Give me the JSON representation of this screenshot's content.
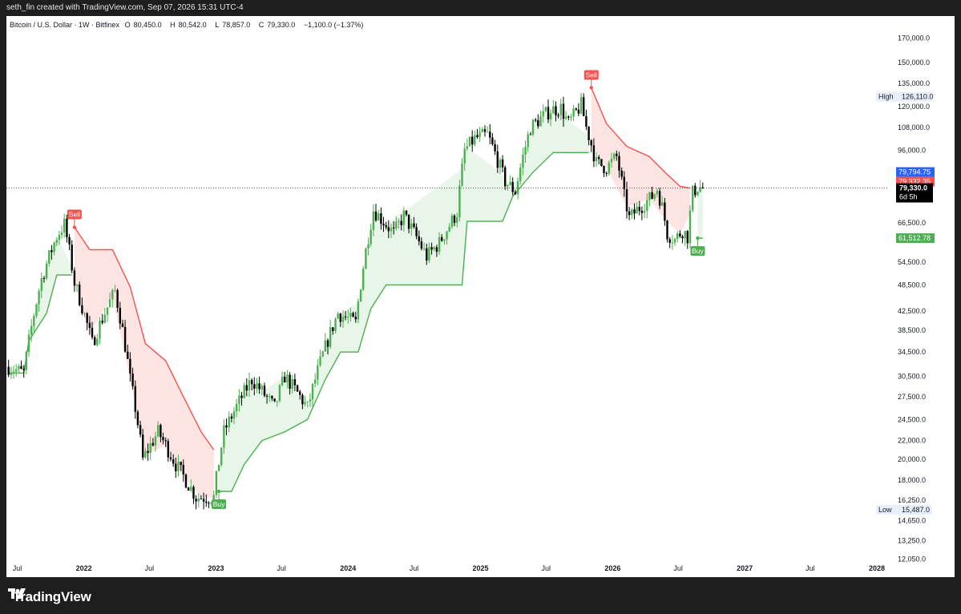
{
  "header": {
    "caption": "seth_fin created with TradingView.com, Sep 07, 2026 15:31 UTC-4"
  },
  "legend": {
    "symbol": "Bitcoin / U.S. Dollar · 1W · Bitfinex",
    "open_label": "O",
    "open": "80,450.0",
    "high_label": "H",
    "high": "80,542.0",
    "low_label": "L",
    "low": "78,857.0",
    "close_label": "C",
    "close": "79,330.0",
    "change": "−1,100.0 (−1.37%)"
  },
  "footer": {
    "brand": "TradingView"
  },
  "colors": {
    "up": "#4caf50",
    "down": "#000000",
    "bull_line": "#4caf50",
    "bear_line": "#f05350",
    "bull_fill": "#e8f6e9",
    "bear_fill": "#fde4e3",
    "last_price": "#000000",
    "upper_tag": "#2962ff",
    "lower_tag": "#f05350",
    "stop_tag": "#4caf50",
    "axis_text": "#131722"
  },
  "chart_data": {
    "type": "candlestick",
    "y_scale": "log",
    "ylim": [
      11000,
      190000
    ],
    "xlim": [
      "2021-06-01",
      "2028-02-01"
    ],
    "y_ticks": [
      {
        "value": 170000,
        "label": "170,000.0"
      },
      {
        "value": 150000,
        "label": "150,000.0"
      },
      {
        "value": 135000,
        "label": "135,000.0"
      },
      {
        "value": 120000,
        "label": "120,000.0"
      },
      {
        "value": 108000,
        "label": "108,000.0"
      },
      {
        "value": 96000,
        "label": "96,000.0"
      },
      {
        "value": 66500,
        "label": "66,500.0"
      },
      {
        "value": 54500,
        "label": "54,500.0"
      },
      {
        "value": 48500,
        "label": "48,500.0"
      },
      {
        "value": 42500,
        "label": "42,500.0"
      },
      {
        "value": 38500,
        "label": "38,500.0"
      },
      {
        "value": 34500,
        "label": "34,500.0"
      },
      {
        "value": 30500,
        "label": "30,500.0"
      },
      {
        "value": 27500,
        "label": "27,500.0"
      },
      {
        "value": 24500,
        "label": "24,500.0"
      },
      {
        "value": 22000,
        "label": "22,000.0"
      },
      {
        "value": 20000,
        "label": "20,000.0"
      },
      {
        "value": 18000,
        "label": "18,000.0"
      },
      {
        "value": 16250,
        "label": "16,250.0"
      },
      {
        "value": 14650,
        "label": "14,650.0"
      },
      {
        "value": 13250,
        "label": "13,250.0"
      },
      {
        "value": 12050,
        "label": "12,050.0"
      }
    ],
    "x_ticks": [
      {
        "date": "2021-07-01",
        "label": "Jul"
      },
      {
        "date": "2022-01-01",
        "label": "2022"
      },
      {
        "date": "2022-07-01",
        "label": "Jul"
      },
      {
        "date": "2023-01-01",
        "label": "2023"
      },
      {
        "date": "2023-07-01",
        "label": "Jul"
      },
      {
        "date": "2024-01-01",
        "label": "2024"
      },
      {
        "date": "2024-07-01",
        "label": "Jul"
      },
      {
        "date": "2025-01-01",
        "label": "2025"
      },
      {
        "date": "2025-07-01",
        "label": "Jul"
      },
      {
        "date": "2026-01-01",
        "label": "2026"
      },
      {
        "date": "2026-07-01",
        "label": "Jul"
      },
      {
        "date": "2027-01-01",
        "label": "2027"
      },
      {
        "date": "2027-07-01",
        "label": "Jul"
      },
      {
        "date": "2028-01-01",
        "label": "2028"
      }
    ],
    "price_anchors": [
      [
        "2021-06-07",
        32000
      ],
      [
        "2021-07-19",
        31000
      ],
      [
        "2021-09-06",
        50000
      ],
      [
        "2021-10-18",
        62000
      ],
      [
        "2021-11-08",
        66000
      ],
      [
        "2021-12-06",
        49000
      ],
      [
        "2022-01-24",
        36000
      ],
      [
        "2022-03-28",
        47000
      ],
      [
        "2022-05-09",
        30000
      ],
      [
        "2022-06-13",
        20000
      ],
      [
        "2022-07-25",
        23000
      ],
      [
        "2022-09-12",
        19500
      ],
      [
        "2022-11-07",
        16500
      ],
      [
        "2022-12-26",
        16500
      ],
      [
        "2023-01-23",
        23000
      ],
      [
        "2023-04-10",
        30000
      ],
      [
        "2023-06-12",
        26000
      ],
      [
        "2023-07-10",
        30500
      ],
      [
        "2023-09-11",
        26000
      ],
      [
        "2023-10-23",
        34000
      ],
      [
        "2023-12-04",
        42000
      ],
      [
        "2024-01-22",
        40000
      ],
      [
        "2024-03-11",
        71000
      ],
      [
        "2024-05-06",
        63000
      ],
      [
        "2024-06-03",
        69000
      ],
      [
        "2024-08-05",
        56000
      ],
      [
        "2024-09-09",
        60000
      ],
      [
        "2024-10-28",
        70000
      ],
      [
        "2024-11-18",
        96000
      ],
      [
        "2024-12-16",
        102000
      ],
      [
        "2025-01-20",
        104000
      ],
      [
        "2025-03-10",
        82000
      ],
      [
        "2025-04-07",
        78000
      ],
      [
        "2025-05-19",
        108000
      ],
      [
        "2025-07-14",
        118000
      ],
      [
        "2025-08-11",
        119000
      ],
      [
        "2025-09-01",
        110000
      ],
      [
        "2025-10-06",
        121000
      ],
      [
        "2025-10-20",
        108000
      ],
      [
        "2025-11-17",
        90000
      ],
      [
        "2025-12-15",
        88000
      ],
      [
        "2026-01-12",
        93000
      ],
      [
        "2026-02-02",
        76000
      ],
      [
        "2026-02-16",
        68000
      ],
      [
        "2026-03-09",
        71000
      ],
      [
        "2026-04-20",
        76000
      ],
      [
        "2026-05-04",
        79000
      ],
      [
        "2026-05-18",
        72000
      ],
      [
        "2026-06-01",
        63000
      ],
      [
        "2026-06-22",
        61000
      ],
      [
        "2026-07-13",
        64000
      ],
      [
        "2026-07-27",
        62000
      ],
      [
        "2026-08-10",
        77500
      ],
      [
        "2026-08-24",
        79800
      ],
      [
        "2026-09-07",
        79330
      ]
    ],
    "supertrend_anchors": [
      [
        "2021-06-07",
        31000,
        "bull"
      ],
      [
        "2021-07-19",
        31000,
        "bull"
      ],
      [
        "2021-08-02",
        36500,
        "bull"
      ],
      [
        "2021-09-20",
        42000,
        "bull"
      ],
      [
        "2021-10-18",
        51000,
        "bull"
      ],
      [
        "2021-11-29",
        51000,
        "bull"
      ],
      [
        "2021-12-06",
        65000,
        "bear"
      ],
      [
        "2022-01-17",
        58000,
        "bear"
      ],
      [
        "2022-03-21",
        58000,
        "bear"
      ],
      [
        "2022-05-09",
        48000,
        "bear"
      ],
      [
        "2022-06-20",
        36000,
        "bear"
      ],
      [
        "2022-08-15",
        33000,
        "bear"
      ],
      [
        "2022-10-03",
        27500,
        "bear"
      ],
      [
        "2022-11-21",
        23000,
        "bear"
      ],
      [
        "2022-12-26",
        21000,
        "bear"
      ],
      [
        "2023-01-09",
        17000,
        "bull"
      ],
      [
        "2023-02-13",
        17000,
        "bull"
      ],
      [
        "2023-03-20",
        19500,
        "bull"
      ],
      [
        "2023-05-08",
        22000,
        "bull"
      ],
      [
        "2023-07-10",
        23000,
        "bull"
      ],
      [
        "2023-09-11",
        24500,
        "bull"
      ],
      [
        "2023-10-30",
        30000,
        "bull"
      ],
      [
        "2023-12-11",
        34500,
        "bull"
      ],
      [
        "2024-01-29",
        34500,
        "bull"
      ],
      [
        "2024-03-04",
        43000,
        "bull"
      ],
      [
        "2024-04-15",
        48500,
        "bull"
      ],
      [
        "2024-11-11",
        48500,
        "bull"
      ],
      [
        "2024-11-25",
        67000,
        "bull"
      ],
      [
        "2025-03-03",
        67000,
        "bull"
      ],
      [
        "2025-03-31",
        76000,
        "bull"
      ],
      [
        "2025-05-26",
        86000,
        "bull"
      ],
      [
        "2025-07-21",
        95000,
        "bull"
      ],
      [
        "2025-10-27",
        95000,
        "bull"
      ],
      [
        "2025-11-03",
        132000,
        "bear"
      ],
      [
        "2025-12-15",
        110000,
        "bear"
      ],
      [
        "2026-02-09",
        98000,
        "bear"
      ],
      [
        "2026-04-13",
        93000,
        "bear"
      ],
      [
        "2026-05-25",
        86000,
        "bear"
      ],
      [
        "2026-07-06",
        80000,
        "bear"
      ],
      [
        "2026-08-03",
        79332.35,
        "bear"
      ],
      [
        "2026-08-24",
        61512.78,
        "bull"
      ],
      [
        "2026-09-07",
        61512.78,
        "bull"
      ]
    ],
    "signals": [
      {
        "type": "sell",
        "date": "2021-12-06",
        "price": 65000,
        "label": "Sell"
      },
      {
        "type": "buy",
        "date": "2023-01-09",
        "price": 17000,
        "label": "Buy"
      },
      {
        "type": "sell",
        "date": "2025-11-03",
        "price": 132000,
        "label": "Sell"
      },
      {
        "type": "buy",
        "date": "2026-08-24",
        "price": 61512.78,
        "label": "Buy"
      }
    ],
    "high": {
      "label": "High",
      "value": 126110.0,
      "text": "126,110.0"
    },
    "low": {
      "label": "Low",
      "value": 15487.0,
      "text": "15,487.0"
    },
    "last_price": {
      "value": 79330.0,
      "text": "79,330.0",
      "countdown": "6d 5h"
    },
    "price_tags": [
      {
        "value": 79794.75,
        "text": "79,794.75",
        "color": "#2962ff"
      },
      {
        "value": 79332.35,
        "text": "79,332.35",
        "color": "#f05350"
      },
      {
        "value": 61512.78,
        "text": "61,512.78",
        "color": "#4caf50"
      }
    ]
  }
}
